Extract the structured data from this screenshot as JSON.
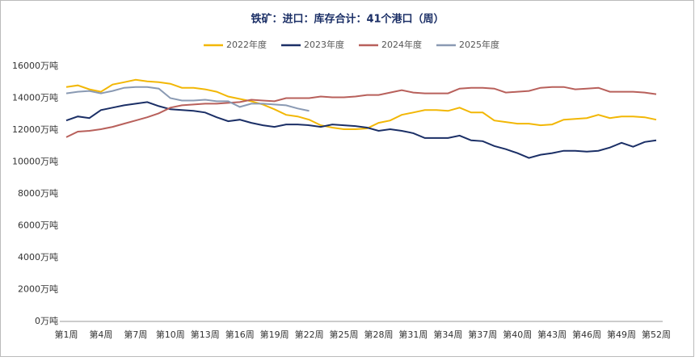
{
  "chart_data": {
    "type": "line",
    "title": "铁矿：进口：库存合计：41个港口（周）",
    "categories": [
      "第1周",
      null,
      null,
      "第4周",
      null,
      null,
      "第7周",
      null,
      null,
      "第10周",
      null,
      null,
      "第13周",
      null,
      null,
      "第16周",
      null,
      null,
      "第19周",
      null,
      null,
      "第22周",
      null,
      null,
      "第25周",
      null,
      null,
      "第28周",
      null,
      null,
      "第31周",
      null,
      null,
      "第34周",
      null,
      null,
      "第37周",
      null,
      null,
      "第40周",
      null,
      null,
      "第43周",
      null,
      null,
      "第46周",
      null,
      null,
      "第49周",
      null,
      null,
      "第52周"
    ],
    "series": [
      {
        "name": "2022年度",
        "color": "#f2b705",
        "values": [
          14700,
          14800,
          14550,
          14400,
          14850,
          15000,
          15150,
          15050,
          15000,
          14900,
          14650,
          14650,
          14550,
          14400,
          14100,
          13950,
          13800,
          13600,
          13300,
          12950,
          12850,
          12650,
          12300,
          12150,
          12050,
          12050,
          12100,
          12450,
          12600,
          12950,
          13100,
          13250,
          13250,
          13200,
          13400,
          13100,
          13100,
          12600,
          12500,
          12400,
          12400,
          12300,
          12350,
          12650,
          12700,
          12750,
          12950,
          12750,
          12850,
          12850,
          12800,
          12650
        ]
      },
      {
        "name": "2023年度",
        "color": "#1b2f66",
        "values": [
          12600,
          12850,
          12750,
          13250,
          13400,
          13550,
          13650,
          13750,
          13500,
          13300,
          13250,
          13200,
          13100,
          12800,
          12550,
          12650,
          12450,
          12300,
          12200,
          12350,
          12350,
          12300,
          12200,
          12350,
          12300,
          12250,
          12150,
          11950,
          12050,
          11950,
          11800,
          11500,
          11500,
          11500,
          11650,
          11350,
          11300,
          11000,
          10800,
          10550,
          10250,
          10450,
          10550,
          10700,
          10700,
          10650,
          10700,
          10900,
          11200,
          10950,
          11250,
          11350
        ]
      },
      {
        "name": "2024年度",
        "color": "#b8605b",
        "values": [
          11550,
          11900,
          11950,
          12050,
          12200,
          12400,
          12600,
          12800,
          13050,
          13400,
          13550,
          13600,
          13650,
          13650,
          13700,
          13750,
          13900,
          13850,
          13800,
          14000,
          14000,
          14000,
          14100,
          14050,
          14050,
          14100,
          14200,
          14200,
          14350,
          14500,
          14350,
          14300,
          14300,
          14300,
          14600,
          14650,
          14650,
          14600,
          14350,
          14400,
          14450,
          14650,
          14700,
          14700,
          14550,
          14600,
          14650,
          14400,
          14400,
          14400,
          14350,
          14250
        ]
      },
      {
        "name": "2025年度",
        "color": "#8a9ab3",
        "values": [
          14300,
          14400,
          14450,
          14300,
          14450,
          14650,
          14700,
          14700,
          14600,
          14000,
          13850,
          13850,
          13900,
          13800,
          13800,
          13450,
          13650,
          13650,
          13600,
          13550,
          13350,
          13200,
          null,
          null,
          null,
          null,
          null,
          null,
          null,
          null,
          null,
          null,
          null,
          null,
          null,
          null,
          null,
          null,
          null,
          null,
          null,
          null,
          null,
          null,
          null,
          null,
          null,
          null,
          null,
          null,
          null,
          null
        ]
      }
    ],
    "ylim": [
      0,
      16000
    ],
    "yticks": [
      {
        "value": 0,
        "label": "0万吨"
      },
      {
        "value": 2000,
        "label": "2000万吨"
      },
      {
        "value": 4000,
        "label": "4000万吨"
      },
      {
        "value": 6000,
        "label": "6000万吨"
      },
      {
        "value": 8000,
        "label": "8000万吨"
      },
      {
        "value": 10000,
        "label": "10000万吨"
      },
      {
        "value": 12000,
        "label": "12000万吨"
      },
      {
        "value": 14000,
        "label": "14000万吨"
      },
      {
        "value": 16000,
        "label": "16000万吨"
      }
    ],
    "grid": false
  }
}
